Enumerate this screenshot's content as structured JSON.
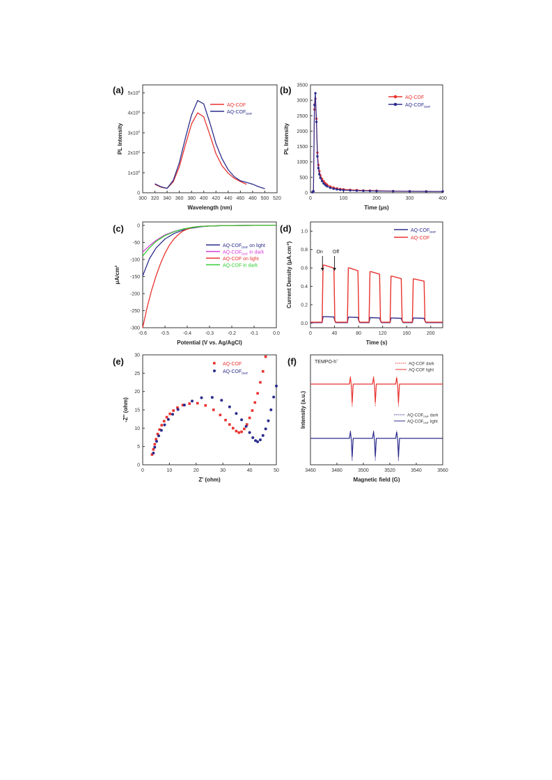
{
  "figure": {
    "panels": [
      "(a)",
      "(b)",
      "(c)",
      "(d)",
      "(e)",
      "(f)"
    ]
  },
  "chart_data": [
    {
      "id": "a",
      "type": "line",
      "panel_label": "(a)",
      "xlabel": "Wavelength (nm)",
      "ylabel": "PL Intensity",
      "xlim": [
        300,
        520
      ],
      "ylim": [
        0,
        5400000
      ],
      "xticks": [
        300,
        320,
        340,
        360,
        380,
        400,
        420,
        440,
        460,
        480,
        500,
        520
      ],
      "yticks": [
        0,
        1000000,
        2000000,
        3000000,
        4000000,
        5000000
      ],
      "ytick_labels": [
        "0",
        "1x10",
        "2x10",
        "3x10",
        "4x10",
        "5x10"
      ],
      "ytick_exponent": "6",
      "legend_position": "top-right",
      "series": [
        {
          "name": "AQ-COF",
          "color": "#e8322e",
          "x": [
            320,
            330,
            340,
            350,
            360,
            370,
            380,
            390,
            400,
            410,
            420,
            430,
            440,
            450,
            460,
            470
          ],
          "y": [
            420000,
            280000,
            220000,
            550000,
            1300000,
            2400000,
            3450000,
            4000000,
            3800000,
            2900000,
            1950000,
            1350000,
            980000,
            720000,
            560000,
            420000
          ]
        },
        {
          "name": "AQ-COF",
          "name_sub": "DMF",
          "color": "#2c2c8c",
          "x": [
            320,
            330,
            340,
            350,
            360,
            370,
            380,
            390,
            400,
            410,
            420,
            430,
            440,
            450,
            460,
            470,
            480,
            490,
            500
          ],
          "y": [
            450000,
            300000,
            220000,
            620000,
            1500000,
            2750000,
            3900000,
            4620000,
            4450000,
            3500000,
            2450000,
            1700000,
            1150000,
            800000,
            600000,
            520000,
            430000,
            300000,
            200000
          ]
        }
      ]
    },
    {
      "id": "b",
      "type": "line",
      "panel_label": "(b)",
      "xlabel": "Time (μs)",
      "ylabel": "PL Intensity",
      "xlim": [
        0,
        400
      ],
      "ylim": [
        0,
        3500
      ],
      "xticks": [
        0,
        100,
        200,
        300,
        400
      ],
      "yticks": [
        0,
        500,
        1000,
        1500,
        2000,
        2500,
        3000,
        3500
      ],
      "legend_position": "top-right",
      "series": [
        {
          "name": "AQ-COF",
          "color": "#e8322e",
          "x": [
            6,
            9,
            12,
            15,
            18,
            21,
            24,
            27,
            30,
            35,
            40,
            45,
            50,
            60,
            70,
            80,
            90,
            100,
            120,
            140,
            160,
            180,
            200,
            250,
            300,
            350,
            400
          ],
          "y": [
            20,
            50,
            2700,
            3050,
            2400,
            1300,
            900,
            700,
            560,
            450,
            370,
            310,
            265,
            200,
            165,
            140,
            120,
            110,
            95,
            85,
            75,
            70,
            65,
            55,
            50,
            45,
            40
          ]
        },
        {
          "name": "AQ-COF",
          "name_sub": "DMF",
          "color": "#2c2c8c",
          "x": [
            6,
            9,
            12,
            15,
            18,
            21,
            24,
            27,
            30,
            35,
            40,
            45,
            50,
            60,
            70,
            80,
            90,
            100,
            120,
            140,
            160,
            180,
            200,
            250,
            300,
            350,
            400
          ],
          "y": [
            20,
            50,
            2850,
            3230,
            2300,
            1180,
            800,
            600,
            480,
            380,
            300,
            250,
            210,
            160,
            130,
            110,
            95,
            85,
            75,
            68,
            62,
            58,
            55,
            50,
            45,
            42,
            40
          ]
        }
      ]
    },
    {
      "id": "c",
      "type": "line",
      "panel_label": "(c)",
      "xlabel": "Potential (V vs. Ag/AgCl)",
      "ylabel": "μA/cm",
      "ylabel_sup": "2",
      "xlim": [
        -0.6,
        0.0
      ],
      "ylim": [
        -300,
        10
      ],
      "xticks": [
        -0.6,
        -0.5,
        -0.4,
        -0.3,
        -0.2,
        -0.1,
        0.0
      ],
      "xtick_labels": [
        "-0.6",
        "-0.5",
        "-0.4",
        "-0.3",
        "-0.2",
        "-0.1",
        "0.0"
      ],
      "yticks": [
        -300,
        -250,
        -200,
        -150,
        -100,
        -50,
        0
      ],
      "legend_position": "center-right",
      "series": [
        {
          "name": "AQ-COF",
          "name_sub": "DMF",
          "name_suffix": " on light",
          "color": "#2c2c8c",
          "x": [
            -0.6,
            -0.57,
            -0.54,
            -0.5,
            -0.46,
            -0.42,
            -0.38,
            -0.34,
            -0.3,
            -0.25,
            -0.2,
            -0.1,
            0.0
          ],
          "y": [
            -148,
            -98,
            -66,
            -40,
            -24,
            -14,
            -8,
            -4,
            -2,
            -1,
            -0.5,
            0,
            0
          ]
        },
        {
          "name": "AQ-COF",
          "name_sub": "DMF",
          "name_suffix": " in dark",
          "color": "#d63ad6",
          "x": [
            -0.6,
            -0.57,
            -0.54,
            -0.5,
            -0.46,
            -0.42,
            -0.38,
            -0.34,
            -0.3,
            -0.25,
            -0.2,
            -0.1,
            0.0
          ],
          "y": [
            -78,
            -60,
            -44,
            -28,
            -18,
            -11,
            -6,
            -3,
            -2,
            -1,
            -0.5,
            0,
            0
          ]
        },
        {
          "name": "AQ-COF on light",
          "color": "#e8322e",
          "x": [
            -0.6,
            -0.58,
            -0.56,
            -0.54,
            -0.52,
            -0.5,
            -0.48,
            -0.46,
            -0.44,
            -0.42,
            -0.4,
            -0.38,
            -0.36,
            -0.34,
            -0.3,
            -0.25,
            -0.2,
            -0.1,
            0.0
          ],
          "y": [
            -300,
            -240,
            -190,
            -148,
            -112,
            -82,
            -58,
            -40,
            -27,
            -17,
            -11,
            -7,
            -4,
            -3,
            -1.5,
            -1,
            -0.5,
            0,
            0
          ]
        },
        {
          "name": "AQ-COF in dark",
          "color": "#33cc33",
          "x": [
            -0.6,
            -0.57,
            -0.54,
            -0.5,
            -0.46,
            -0.42,
            -0.38,
            -0.34,
            -0.3,
            -0.25,
            -0.2,
            -0.1,
            0.0
          ],
          "y": [
            -90,
            -66,
            -47,
            -30,
            -19,
            -11,
            -6,
            -3,
            -2,
            -1,
            -0.5,
            0,
            0
          ]
        }
      ]
    },
    {
      "id": "d",
      "type": "line",
      "panel_label": "(d)",
      "xlabel": "Time (s)",
      "ylabel": "Current Density (μA.cm",
      "ylabel_sup": "-2",
      "ylabel_end": ")",
      "xlim": [
        0,
        220
      ],
      "ylim": [
        -0.05,
        1.1
      ],
      "xticks": [
        0,
        40,
        80,
        120,
        160,
        200
      ],
      "yticks": [
        0.0,
        0.2,
        0.4,
        0.6,
        0.8,
        1.0
      ],
      "ytick_labels": [
        "0.0",
        "0.2",
        "0.4",
        "0.6",
        "0.8",
        "1.0"
      ],
      "legend_position": "top-right",
      "annotations": [
        {
          "text": "On",
          "x": 20,
          "y": 0.76
        },
        {
          "text": "Off",
          "x": 40,
          "y": 0.76
        }
      ],
      "on_off_cycles": [
        [
          20,
          40
        ],
        [
          62,
          80
        ],
        [
          98,
          116
        ],
        [
          133,
          152
        ],
        [
          170,
          190
        ]
      ],
      "series": [
        {
          "name": "AQ-COF",
          "name_sub": "DMF",
          "color": "#2c2c8c",
          "on_level": [
            0.07,
            0.065,
            0.06,
            0.055,
            0.055
          ],
          "off_level": 0.005
        },
        {
          "name": "AQ-COF",
          "color": "#e8322e",
          "on_level": [
            0.63,
            0.6,
            0.56,
            0.51,
            0.48
          ],
          "off_level": 0.01
        }
      ]
    },
    {
      "id": "e",
      "type": "scatter",
      "panel_label": "(e)",
      "xlabel": "Z' (ohm)",
      "ylabel": "-Z'' (ohm)",
      "xlim": [
        0,
        50
      ],
      "ylim": [
        0,
        30
      ],
      "xticks": [
        0,
        10,
        20,
        30,
        40,
        50
      ],
      "yticks": [
        0,
        5,
        10,
        15,
        20,
        25,
        30
      ],
      "legend_position": "top-right",
      "series": [
        {
          "name": "AQ-COF",
          "color": "#e8322e",
          "x": [
            3.5,
            4.0,
            4.5,
            5.0,
            5.6,
            6.3,
            7.1,
            8.0,
            9.0,
            10.2,
            11.5,
            13.0,
            15.0,
            17.5,
            20.5,
            23.5,
            26.5,
            29.0,
            31.0,
            32.5,
            33.8,
            35.0,
            36.0,
            37.0,
            38.0,
            39.0,
            40.0,
            41.0,
            42.0,
            43.0,
            44.0,
            45.0,
            46.0
          ],
          "y": [
            2.8,
            4.2,
            5.6,
            7.0,
            8.4,
            9.6,
            10.8,
            11.9,
            13.0,
            13.9,
            14.8,
            15.6,
            16.3,
            16.7,
            16.8,
            16.2,
            15.0,
            13.6,
            12.2,
            11.0,
            10.0,
            9.2,
            8.8,
            9.0,
            9.8,
            11.0,
            12.8,
            14.8,
            17.0,
            19.5,
            22.5,
            25.5,
            29.5
          ]
        },
        {
          "name": "AQ-COF",
          "name_sub": "DMF",
          "color": "#2c2c8c",
          "x": [
            4.0,
            4.5,
            5.2,
            6.0,
            7.0,
            8.2,
            9.6,
            11.2,
            13.2,
            15.6,
            18.5,
            22.0,
            26.0,
            29.5,
            32.5,
            35.0,
            37.0,
            38.7,
            40.0,
            41.2,
            42.2,
            43.0,
            44.0,
            45.0,
            46.0,
            47.0,
            48.0,
            49.0,
            50.0
          ],
          "y": [
            3.2,
            4.8,
            6.4,
            7.9,
            9.4,
            10.9,
            12.4,
            13.8,
            15.1,
            16.3,
            17.4,
            18.3,
            18.4,
            17.6,
            15.8,
            14.0,
            12.3,
            10.5,
            8.8,
            7.4,
            6.6,
            6.3,
            6.8,
            8.0,
            9.8,
            12.0,
            15.0,
            18.5,
            21.5
          ]
        }
      ]
    },
    {
      "id": "f",
      "type": "line",
      "panel_label": "(f)",
      "xlabel": "Magnetic field (G)",
      "ylabel": "Intensity (a.u.)",
      "xlim": [
        3460,
        3560
      ],
      "xticks": [
        3460,
        3480,
        3500,
        3520,
        3540,
        3560
      ],
      "annotation": "TEMPO-h",
      "annotation_sup": "+",
      "line_centers": [
        3491,
        3508.5,
        3526
      ],
      "legend_position": "top-right",
      "series": [
        {
          "name": "AQ-COF dark",
          "color": "#e8322e",
          "style": "dotted",
          "group": "top",
          "amplitude": 0.85
        },
        {
          "name": "AQ-COF light",
          "color": "#e8322e",
          "style": "solid",
          "group": "top",
          "amplitude": 0.7
        },
        {
          "name": "AQ-COF",
          "name_sub": "DMF",
          "name_suffix": " dark",
          "color": "#2c2c8c",
          "style": "dotted",
          "group": "bottom",
          "amplitude": 0.85
        },
        {
          "name": "AQ-COF",
          "name_sub": "DMF",
          "name_suffix": " light",
          "color": "#2c2c8c",
          "style": "solid",
          "group": "bottom",
          "amplitude": 0.7
        }
      ]
    }
  ]
}
